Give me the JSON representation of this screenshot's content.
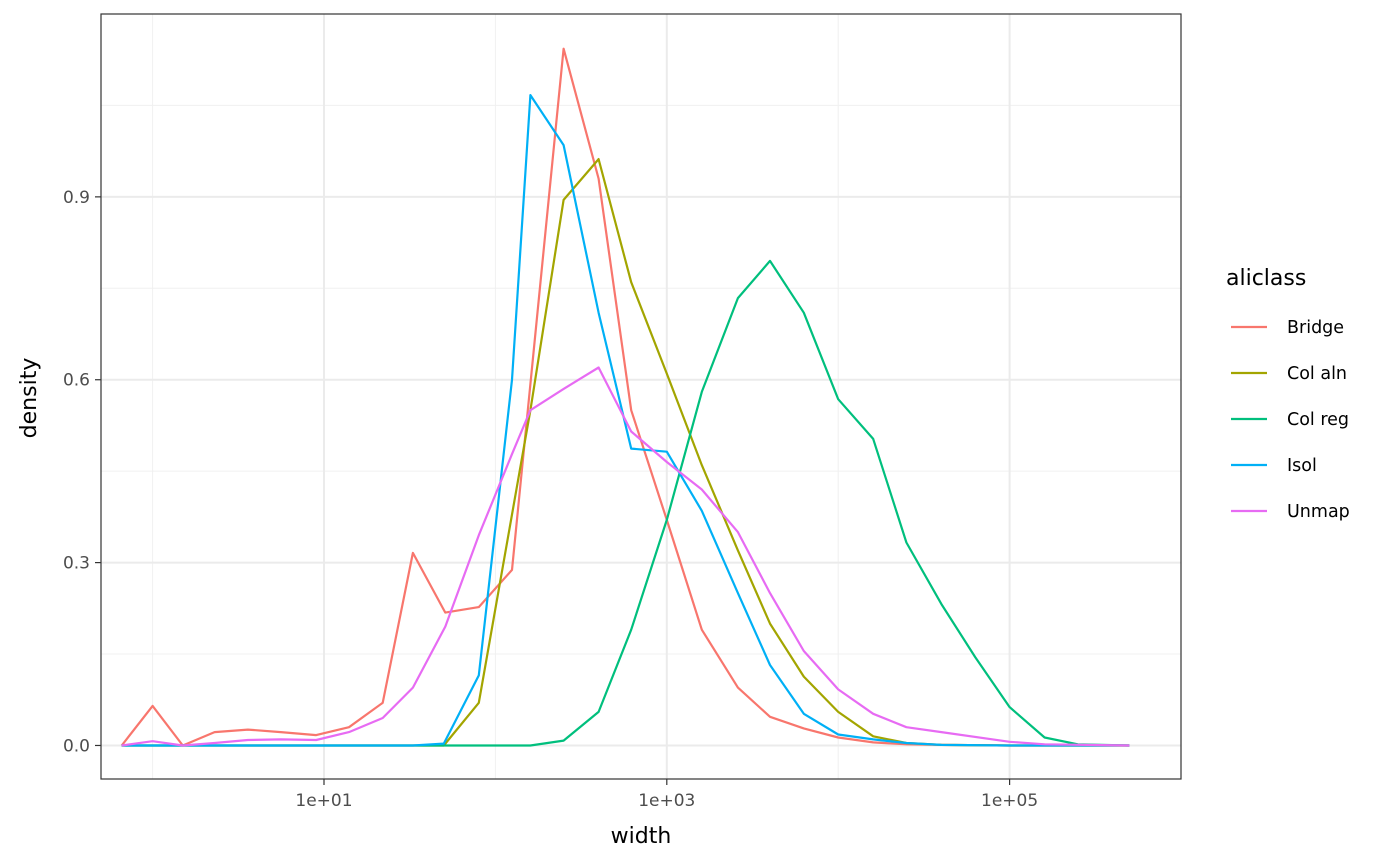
{
  "chart_data": {
    "type": "line",
    "xlabel": "width",
    "ylabel": "density",
    "x_scale": "log10",
    "xlim": [
      0.5,
      1000000
    ],
    "ylim": [
      -0.055,
      1.2
    ],
    "grid": true,
    "legend_position": "right",
    "legend_title": "aliclass",
    "x_ticks": [
      {
        "value": 10,
        "label": "1e+01"
      },
      {
        "value": 1000,
        "label": "1e+03"
      },
      {
        "value": 100000,
        "label": "1e+05"
      }
    ],
    "y_ticks": [
      {
        "value": 0.0,
        "label": "0.0"
      },
      {
        "value": 0.3,
        "label": "0.3"
      },
      {
        "value": 0.6,
        "label": "0.6"
      },
      {
        "value": 0.9,
        "label": "0.9"
      }
    ],
    "series": [
      {
        "name": "Bridge",
        "color": "#F8766D",
        "points": [
          [
            0.66,
            0.0
          ],
          [
            1.0,
            0.065
          ],
          [
            1.5,
            0.0
          ],
          [
            2.3,
            0.022
          ],
          [
            3.6,
            0.026
          ],
          [
            5.6,
            0.022
          ],
          [
            9.0,
            0.017
          ],
          [
            14,
            0.03
          ],
          [
            22,
            0.07
          ],
          [
            33,
            0.316
          ],
          [
            51,
            0.218
          ],
          [
            80,
            0.227
          ],
          [
            125,
            0.288
          ],
          [
            250,
            1.143
          ],
          [
            400,
            0.93
          ],
          [
            620,
            0.55
          ],
          [
            1000,
            0.37
          ],
          [
            1600,
            0.19
          ],
          [
            2600,
            0.095
          ],
          [
            4000,
            0.047
          ],
          [
            6300,
            0.028
          ],
          [
            10000,
            0.013
          ],
          [
            16000,
            0.005
          ],
          [
            25000,
            0.002
          ],
          [
            40000,
            0.001
          ],
          [
            100000,
            0.0
          ],
          [
            500000,
            0.0
          ]
        ]
      },
      {
        "name": "Col aln",
        "color": "#A3A500",
        "points": [
          [
            0.66,
            0.0
          ],
          [
            10,
            0.0
          ],
          [
            50,
            0.0
          ],
          [
            80,
            0.07
          ],
          [
            160,
            0.55
          ],
          [
            250,
            0.895
          ],
          [
            400,
            0.962
          ],
          [
            620,
            0.76
          ],
          [
            1000,
            0.61
          ],
          [
            1600,
            0.46
          ],
          [
            2600,
            0.32
          ],
          [
            4000,
            0.2
          ],
          [
            6300,
            0.113
          ],
          [
            10000,
            0.055
          ],
          [
            16000,
            0.015
          ],
          [
            25000,
            0.004
          ],
          [
            40000,
            0.001
          ],
          [
            100000,
            0.0
          ],
          [
            500000,
            0.0
          ]
        ]
      },
      {
        "name": "Col reg",
        "color": "#00BF7D",
        "points": [
          [
            0.66,
            0.0
          ],
          [
            10,
            0.0
          ],
          [
            100,
            0.0
          ],
          [
            160,
            0.0
          ],
          [
            250,
            0.008
          ],
          [
            400,
            0.055
          ],
          [
            620,
            0.19
          ],
          [
            1000,
            0.37
          ],
          [
            1600,
            0.58
          ],
          [
            2600,
            0.734
          ],
          [
            4000,
            0.795
          ],
          [
            6300,
            0.71
          ],
          [
            10000,
            0.568
          ],
          [
            16000,
            0.503
          ],
          [
            25000,
            0.333
          ],
          [
            40000,
            0.232
          ],
          [
            63000,
            0.145
          ],
          [
            100000,
            0.063
          ],
          [
            160000,
            0.013
          ],
          [
            250000,
            0.002
          ],
          [
            500000,
            0.0
          ]
        ]
      },
      {
        "name": "Isol",
        "color": "#00B0F6",
        "points": [
          [
            0.66,
            0.0
          ],
          [
            10,
            0.0
          ],
          [
            33,
            0.0
          ],
          [
            50,
            0.003
          ],
          [
            80,
            0.115
          ],
          [
            125,
            0.6
          ],
          [
            160,
            1.067
          ],
          [
            250,
            0.985
          ],
          [
            400,
            0.71
          ],
          [
            620,
            0.487
          ],
          [
            1000,
            0.482
          ],
          [
            1600,
            0.385
          ],
          [
            2600,
            0.25
          ],
          [
            4000,
            0.132
          ],
          [
            6300,
            0.052
          ],
          [
            10000,
            0.018
          ],
          [
            16000,
            0.01
          ],
          [
            25000,
            0.004
          ],
          [
            40000,
            0.001
          ],
          [
            100000,
            0.0
          ],
          [
            500000,
            0.0
          ]
        ]
      },
      {
        "name": "Unmap",
        "color": "#E76BF3",
        "points": [
          [
            0.66,
            0.0
          ],
          [
            1.0,
            0.007
          ],
          [
            1.5,
            0.0
          ],
          [
            2.3,
            0.004
          ],
          [
            3.6,
            0.009
          ],
          [
            5.6,
            0.01
          ],
          [
            9.0,
            0.009
          ],
          [
            14,
            0.022
          ],
          [
            22,
            0.045
          ],
          [
            33,
            0.095
          ],
          [
            51,
            0.195
          ],
          [
            80,
            0.345
          ],
          [
            125,
            0.478
          ],
          [
            160,
            0.55
          ],
          [
            250,
            0.585
          ],
          [
            400,
            0.62
          ],
          [
            620,
            0.515
          ],
          [
            1000,
            0.465
          ],
          [
            1600,
            0.42
          ],
          [
            2600,
            0.35
          ],
          [
            4000,
            0.25
          ],
          [
            6300,
            0.155
          ],
          [
            10000,
            0.092
          ],
          [
            16000,
            0.052
          ],
          [
            25000,
            0.03
          ],
          [
            40000,
            0.022
          ],
          [
            100000,
            0.006
          ],
          [
            160000,
            0.002
          ],
          [
            500000,
            0.0
          ]
        ]
      }
    ]
  }
}
